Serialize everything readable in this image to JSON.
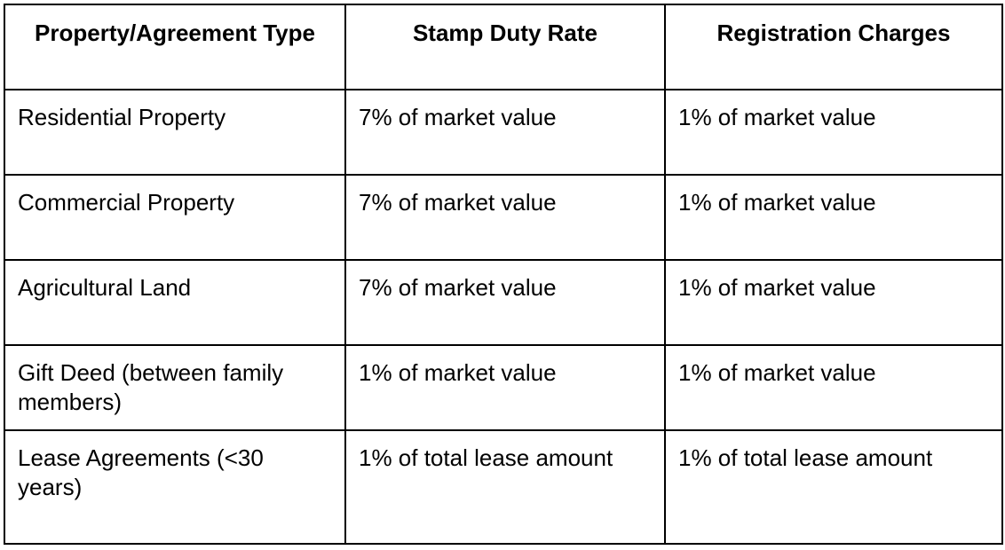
{
  "table": {
    "headers": [
      "Property/Agreement Type",
      "Stamp Duty Rate",
      "Registration Charges"
    ],
    "rows": [
      [
        "Residential Property",
        "7% of market value",
        "1% of market value"
      ],
      [
        "Commercial Property",
        "7% of market value",
        "1% of market value"
      ],
      [
        "Agricultural Land",
        "7% of market value",
        "1% of market value"
      ],
      [
        "Gift Deed (between family members)",
        "1% of market value",
        "1% of market value"
      ],
      [
        "Lease Agreements (<30 years)",
        "1% of total lease amount",
        "1% of total lease amount"
      ]
    ]
  }
}
